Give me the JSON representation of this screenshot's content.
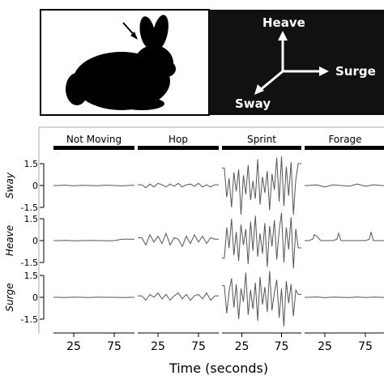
{
  "header": {
    "axes_labels": {
      "heave": "Heave",
      "surge": "Surge",
      "sway": "Sway"
    },
    "colors": {
      "panel_bg": "#111111",
      "silhouette": "#000000",
      "arrow": "#ffffff"
    },
    "rabbit_icon": "rabbit-silhouette-icon",
    "pointer_icon": "arrow-pointer-icon"
  },
  "chart_data": {
    "type": "line",
    "behaviors": [
      "Not Moving",
      "Hop",
      "Sprint",
      "Forage"
    ],
    "rows": [
      "Sway",
      "Heave",
      "Surge"
    ],
    "ylim": [
      -2,
      2
    ],
    "yticks": [
      1.5,
      0,
      -1.5
    ],
    "ytick_labels": [
      "1.5",
      "0",
      "-1.5"
    ],
    "xlim": [
      0,
      100
    ],
    "xticks": [
      25,
      75
    ],
    "xtick_labels": [
      "25",
      "75"
    ],
    "xlabel": "Time (seconds)",
    "grid": false,
    "line_color": "#555555",
    "series": [
      {
        "row": "Sway",
        "behavior": "Not Moving",
        "x": [
          5,
          15,
          25,
          35,
          45,
          55,
          65,
          75,
          85,
          95
        ],
        "values": [
          0.0,
          0.02,
          -0.02,
          0.01,
          0.0,
          -0.01,
          0.02,
          0.0,
          -0.02,
          0.01
        ]
      },
      {
        "row": "Sway",
        "behavior": "Hop",
        "x": [
          5,
          10,
          15,
          20,
          25,
          30,
          35,
          40,
          45,
          50,
          55,
          60,
          65,
          70,
          75,
          80,
          85,
          90,
          95
        ],
        "values": [
          0.05,
          -0.15,
          0.1,
          -0.1,
          0.15,
          0.05,
          -0.1,
          0.1,
          -0.05,
          0.15,
          -0.1,
          0.05,
          0.1,
          -0.05,
          0.15,
          -0.1,
          0.05,
          -0.1,
          0.05
        ]
      },
      {
        "row": "Sway",
        "behavior": "Sprint",
        "x": [
          3,
          6,
          9,
          12,
          15,
          18,
          21,
          24,
          27,
          30,
          33,
          36,
          39,
          42,
          45,
          48,
          51,
          54,
          57,
          60,
          63,
          66,
          69,
          72,
          75,
          78,
          81,
          84,
          87,
          90,
          93,
          96
        ],
        "values": [
          1.2,
          -0.8,
          0.5,
          -1.5,
          0.9,
          -0.4,
          1.1,
          -2.0,
          0.7,
          -0.6,
          1.4,
          -1.0,
          0.3,
          -0.9,
          1.8,
          -1.3,
          0.6,
          -0.5,
          1.0,
          -1.7,
          0.8,
          -0.3,
          1.9,
          -1.1,
          2.0,
          -1.4,
          1.3,
          -0.7,
          1.6,
          -2.0,
          0.4,
          1.5
        ]
      },
      {
        "row": "Sway",
        "behavior": "Forage",
        "x": [
          5,
          15,
          25,
          35,
          45,
          55,
          65,
          75,
          85,
          95
        ],
        "values": [
          0.0,
          0.05,
          -0.1,
          0.05,
          0.0,
          -0.05,
          0.1,
          -0.05,
          0.05,
          0.0
        ]
      },
      {
        "row": "Heave",
        "behavior": "Not Moving",
        "x": [
          5,
          15,
          25,
          35,
          45,
          55,
          65,
          75,
          80,
          85,
          95
        ],
        "values": [
          0.0,
          0.01,
          -0.01,
          0.0,
          0.01,
          0.0,
          -0.01,
          0.0,
          0.05,
          0.1,
          0.1
        ]
      },
      {
        "row": "Heave",
        "behavior": "Hop",
        "x": [
          5,
          10,
          15,
          20,
          25,
          30,
          35,
          40,
          45,
          50,
          55,
          60,
          65,
          70,
          75,
          80,
          85,
          90,
          95
        ],
        "values": [
          0.2,
          -0.3,
          0.4,
          -0.1,
          0.3,
          -0.2,
          0.5,
          -0.3,
          0.2,
          0.1,
          -0.4,
          0.3,
          -0.2,
          0.4,
          -0.1,
          0.3,
          -0.2,
          0.2,
          0.1
        ]
      },
      {
        "row": "Heave",
        "behavior": "Sprint",
        "x": [
          3,
          6,
          9,
          12,
          15,
          18,
          21,
          24,
          27,
          30,
          33,
          36,
          39,
          42,
          45,
          48,
          51,
          54,
          57,
          60,
          63,
          66,
          69,
          72,
          75,
          78,
          81,
          84,
          87,
          90,
          93,
          96
        ],
        "values": [
          -1.2,
          0.9,
          -0.5,
          1.5,
          -1.0,
          0.6,
          -1.4,
          1.1,
          -0.3,
          0.8,
          -1.6,
          1.3,
          -0.7,
          1.7,
          -1.1,
          0.5,
          -0.9,
          1.2,
          -1.8,
          1.0,
          -0.4,
          1.4,
          -1.3,
          0.7,
          1.9,
          -1.5,
          0.9,
          -0.6,
          1.6,
          -1.9,
          0.8,
          -0.5
        ]
      },
      {
        "row": "Heave",
        "behavior": "Forage",
        "x": [
          5,
          10,
          12,
          15,
          20,
          25,
          30,
          35,
          40,
          42,
          45,
          50,
          55,
          60,
          65,
          70,
          75,
          80,
          82,
          85,
          90,
          95
        ],
        "values": [
          0.0,
          0.1,
          0.4,
          0.3,
          0.0,
          0.0,
          0.0,
          0.0,
          0.1,
          0.5,
          0.0,
          0.0,
          0.0,
          0.0,
          0.0,
          0.0,
          0.0,
          0.1,
          0.6,
          0.0,
          0.0,
          0.0
        ]
      },
      {
        "row": "Surge",
        "behavior": "Not Moving",
        "x": [
          5,
          15,
          25,
          35,
          45,
          55,
          65,
          75,
          85,
          95
        ],
        "values": [
          0.0,
          -0.01,
          0.01,
          0.0,
          -0.01,
          0.01,
          0.0,
          0.0,
          -0.01,
          0.0
        ]
      },
      {
        "row": "Surge",
        "behavior": "Hop",
        "x": [
          5,
          10,
          15,
          20,
          25,
          30,
          35,
          40,
          45,
          50,
          55,
          60,
          65,
          70,
          75,
          80,
          85,
          90,
          95
        ],
        "values": [
          0.1,
          -0.2,
          0.2,
          0.0,
          0.3,
          -0.1,
          0.2,
          -0.2,
          0.1,
          0.3,
          -0.1,
          0.2,
          -0.2,
          0.1,
          0.2,
          -0.1,
          0.3,
          -0.2,
          0.1
        ]
      },
      {
        "row": "Surge",
        "behavior": "Sprint",
        "x": [
          3,
          6,
          9,
          12,
          15,
          18,
          21,
          24,
          27,
          30,
          33,
          36,
          39,
          42,
          45,
          48,
          51,
          54,
          57,
          60,
          63,
          66,
          69,
          72,
          75,
          78,
          81,
          84,
          87,
          90,
          93,
          96
        ],
        "values": [
          0.8,
          -1.1,
          0.4,
          1.3,
          -0.7,
          0.9,
          -1.5,
          0.6,
          -0.3,
          1.7,
          -1.2,
          0.5,
          -0.8,
          1.0,
          -1.6,
          1.4,
          -0.5,
          0.7,
          -1.0,
          1.8,
          -0.9,
          0.3,
          1.2,
          -1.4,
          0.6,
          -2.0,
          1.1,
          -0.4,
          0.9,
          -1.3,
          0.5,
          0.2
        ]
      },
      {
        "row": "Surge",
        "behavior": "Forage",
        "x": [
          5,
          15,
          25,
          35,
          45,
          55,
          65,
          75,
          85,
          95
        ],
        "values": [
          0.0,
          0.02,
          -0.02,
          0.01,
          0.0,
          -0.01,
          0.02,
          -0.01,
          0.01,
          0.0
        ]
      }
    ]
  }
}
